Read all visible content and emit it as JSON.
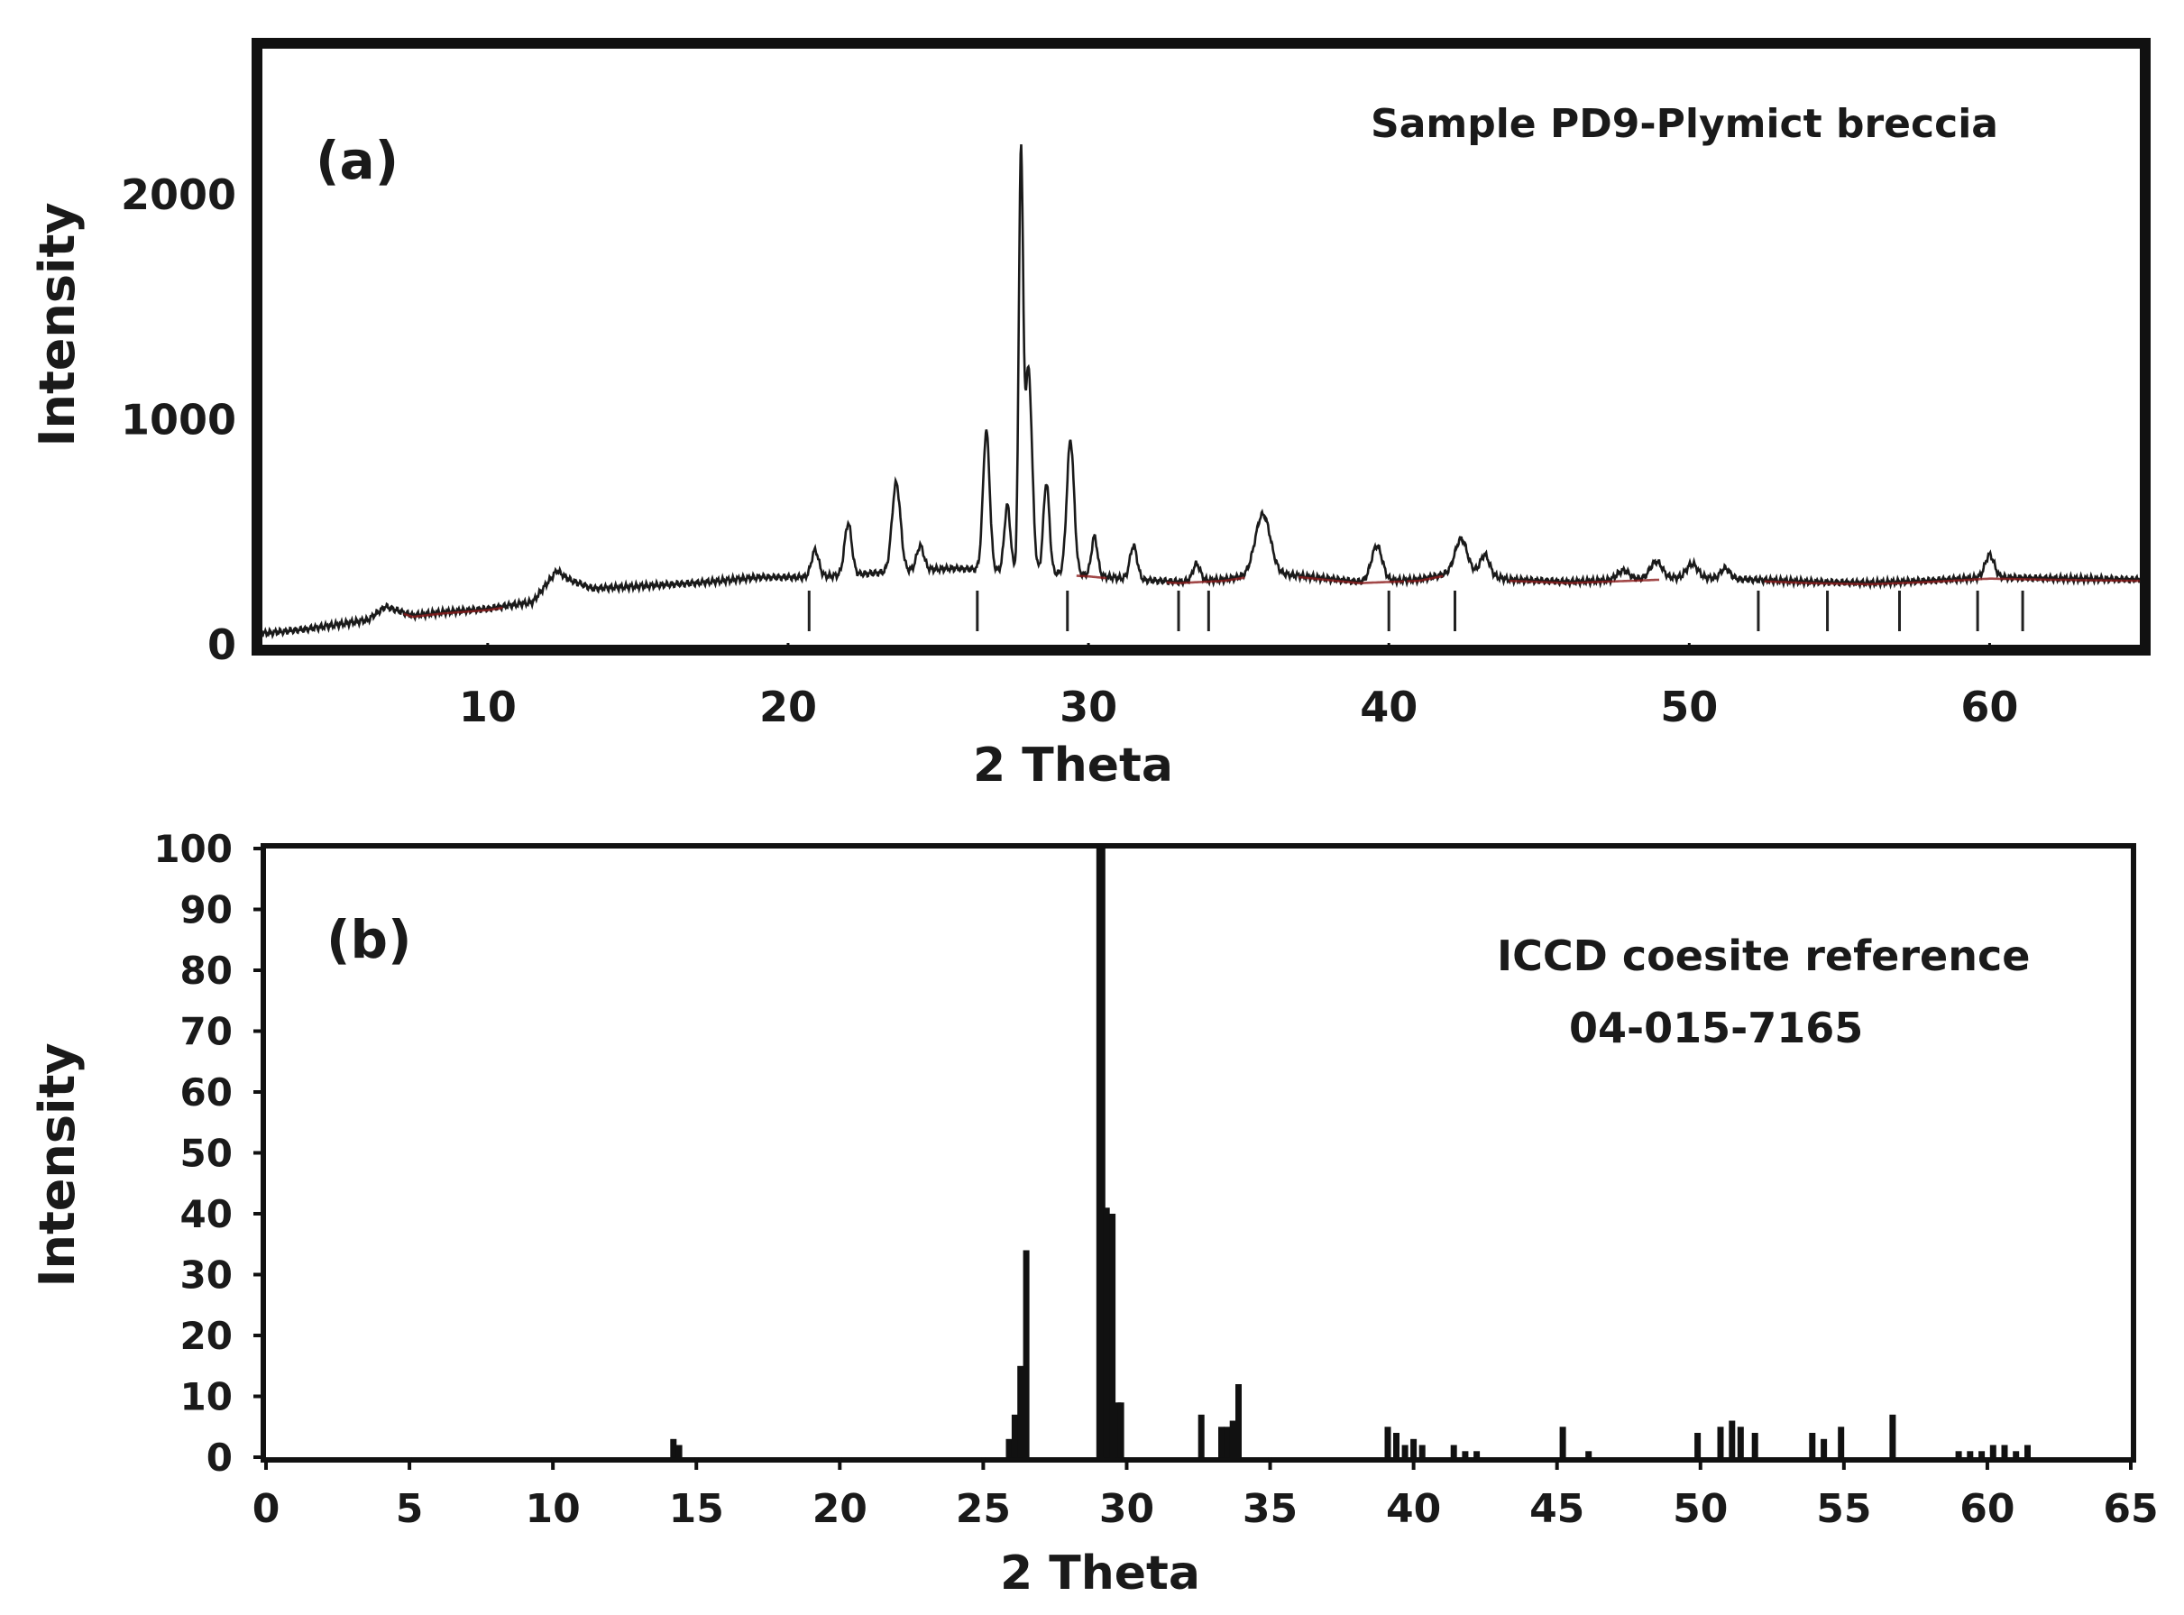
{
  "chart_data": [
    {
      "panel": "(a)",
      "type": "line",
      "annotation": "Sample PD9-Plymict breccia",
      "xlabel": "2 Theta",
      "ylabel": "Intensity",
      "xlim": [
        2.5,
        65
      ],
      "ylim": [
        0,
        2650
      ],
      "xticks": [
        10,
        20,
        30,
        40,
        50,
        60
      ],
      "yticks": [
        0,
        1000,
        2000
      ],
      "grid": false,
      "colors": {
        "trace": "#1a1a1a",
        "fit": "#8b1a1a",
        "frame": "#111111"
      },
      "background": [
        [
          2.5,
          50
        ],
        [
          4,
          70
        ],
        [
          6,
          110
        ],
        [
          6.6,
          170
        ],
        [
          7.5,
          130
        ],
        [
          8.5,
          145
        ],
        [
          10,
          160
        ],
        [
          11.5,
          190
        ],
        [
          12.3,
          330
        ],
        [
          12.7,
          290
        ],
        [
          13.5,
          250
        ],
        [
          15,
          260
        ],
        [
          17,
          275
        ],
        [
          19,
          300
        ],
        [
          20.5,
          300
        ],
        [
          22,
          310
        ],
        [
          24,
          330
        ],
        [
          25.5,
          340
        ],
        [
          27,
          330
        ],
        [
          28.5,
          320
        ],
        [
          30,
          310
        ],
        [
          31.5,
          290
        ],
        [
          33,
          280
        ],
        [
          34.5,
          290
        ],
        [
          36,
          320
        ],
        [
          37.5,
          300
        ],
        [
          39,
          280
        ],
        [
          41,
          290
        ],
        [
          42.5,
          330
        ],
        [
          44,
          290
        ],
        [
          46,
          280
        ],
        [
          48,
          290
        ],
        [
          50,
          300
        ],
        [
          52,
          290
        ],
        [
          54,
          280
        ],
        [
          56,
          275
        ],
        [
          58,
          285
        ],
        [
          60,
          300
        ],
        [
          62,
          295
        ],
        [
          65,
          290
        ]
      ],
      "peaks": [
        {
          "x": 20.9,
          "y": 420,
          "w": 0.12
        },
        {
          "x": 22.0,
          "y": 540,
          "w": 0.12
        },
        {
          "x": 23.6,
          "y": 720,
          "w": 0.14
        },
        {
          "x": 24.4,
          "y": 440,
          "w": 0.12
        },
        {
          "x": 26.6,
          "y": 950,
          "w": 0.11
        },
        {
          "x": 27.3,
          "y": 620,
          "w": 0.1
        },
        {
          "x": 27.75,
          "y": 2120,
          "w": 0.07
        },
        {
          "x": 28.0,
          "y": 1230,
          "w": 0.12
        },
        {
          "x": 28.6,
          "y": 720,
          "w": 0.1
        },
        {
          "x": 29.4,
          "y": 910,
          "w": 0.12
        },
        {
          "x": 30.2,
          "y": 480,
          "w": 0.1
        },
        {
          "x": 31.5,
          "y": 440,
          "w": 0.12
        },
        {
          "x": 33.6,
          "y": 360,
          "w": 0.12
        },
        {
          "x": 35.8,
          "y": 580,
          "w": 0.25
        },
        {
          "x": 39.6,
          "y": 440,
          "w": 0.18
        },
        {
          "x": 42.4,
          "y": 470,
          "w": 0.2
        },
        {
          "x": 43.2,
          "y": 400,
          "w": 0.15
        },
        {
          "x": 47.8,
          "y": 330,
          "w": 0.2
        },
        {
          "x": 48.9,
          "y": 370,
          "w": 0.2
        },
        {
          "x": 50.1,
          "y": 360,
          "w": 0.18
        },
        {
          "x": 51.2,
          "y": 340,
          "w": 0.15
        },
        {
          "x": 60.0,
          "y": 400,
          "w": 0.15
        }
      ],
      "reference_ticks": [
        20.7,
        26.3,
        29.3,
        33.0,
        34.0,
        40.0,
        42.2,
        52.3,
        54.6,
        57.0,
        59.6,
        61.1
      ]
    },
    {
      "panel": "(b)",
      "type": "bar",
      "annotation": [
        "ICCD coesite reference",
        "04-015-7165"
      ],
      "xlabel": "2 Theta",
      "ylabel": "Intensity",
      "xlim": [
        0,
        65
      ],
      "ylim": [
        0,
        100
      ],
      "xticks": [
        0,
        5,
        10,
        15,
        20,
        25,
        30,
        35,
        40,
        45,
        50,
        55,
        60,
        65
      ],
      "yticks": [
        0,
        10,
        20,
        30,
        40,
        50,
        60,
        70,
        80,
        90,
        100
      ],
      "grid": false,
      "colors": {
        "bars": "#111111",
        "frame": "#111111"
      },
      "x": [
        14.2,
        14.4,
        25.9,
        26.1,
        26.3,
        26.5,
        29.1,
        29.3,
        29.5,
        29.7,
        29.8,
        32.6,
        33.3,
        33.5,
        33.7,
        33.9,
        39.1,
        39.4,
        39.7,
        40.0,
        40.3,
        41.4,
        41.8,
        42.2,
        45.2,
        46.1,
        49.9,
        50.7,
        51.1,
        51.4,
        51.9,
        53.9,
        54.3,
        54.9,
        56.7,
        59.0,
        59.4,
        59.8,
        60.2,
        60.6,
        61.0,
        61.4
      ],
      "values": [
        3,
        2,
        3,
        7,
        15,
        34,
        100,
        41,
        40,
        9,
        9,
        7,
        5,
        5,
        6,
        12,
        5,
        4,
        2,
        3,
        2,
        2,
        1,
        1,
        5,
        1,
        4,
        5,
        6,
        5,
        4,
        4,
        3,
        5,
        7,
        1,
        1,
        1,
        2,
        2,
        1,
        2
      ]
    }
  ]
}
